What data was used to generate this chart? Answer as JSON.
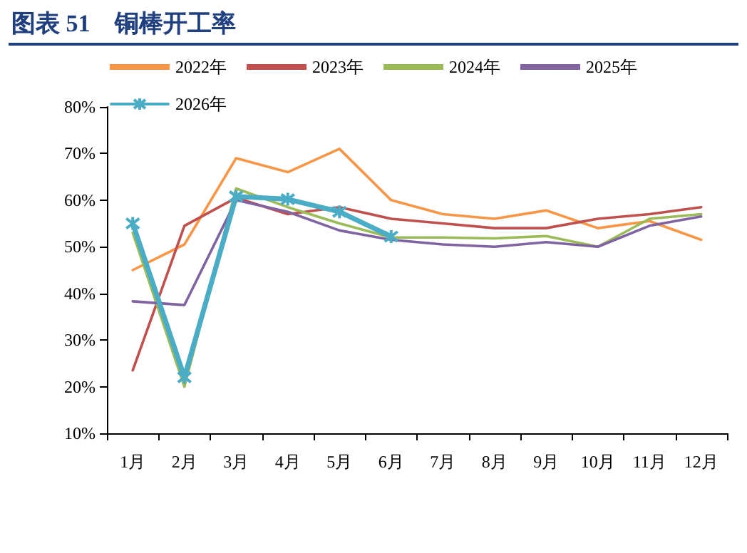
{
  "chart_data": {
    "type": "line",
    "title": "图表 51　铜棒开工率",
    "categories": [
      "1月",
      "2月",
      "3月",
      "4月",
      "5月",
      "6月",
      "7月",
      "8月",
      "9月",
      "10月",
      "11月",
      "12月"
    ],
    "series": [
      {
        "name": "2022年",
        "color": "#f79646",
        "values": [
          45,
          50.5,
          69,
          66,
          71,
          60,
          57,
          56,
          57.8,
          54,
          55.5,
          51.5
        ]
      },
      {
        "name": "2023年",
        "color": "#c0504d",
        "values": [
          23.5,
          54.5,
          60.5,
          57,
          58.5,
          56,
          55,
          54,
          54,
          56,
          57,
          58.5
        ]
      },
      {
        "name": "2024年",
        "color": "#9bbb59",
        "values": [
          53,
          20,
          62.5,
          58.5,
          55,
          52,
          52,
          51.8,
          52.3,
          50,
          56,
          57
        ]
      },
      {
        "name": "2025年",
        "color": "#8064a2",
        "values": [
          38.3,
          37.5,
          60,
          57.5,
          53.5,
          51.5,
          50.5,
          50,
          51,
          50,
          54.5,
          56.5
        ]
      },
      {
        "name": "2026年",
        "color": "#4bacc6",
        "marker": "cross",
        "values": [
          55,
          22,
          60.8,
          60.2,
          57.5,
          52.2,
          null,
          null,
          null,
          null,
          null,
          null
        ]
      }
    ],
    "ylim": [
      10,
      80
    ],
    "yticks": [
      {
        "value": 10,
        "label": "10%"
      },
      {
        "value": 20,
        "label": "20%"
      },
      {
        "value": 30,
        "label": "30%"
      },
      {
        "value": 40,
        "label": "40%"
      },
      {
        "value": 50,
        "label": "50%"
      },
      {
        "value": 60,
        "label": "60%"
      },
      {
        "value": 70,
        "label": "70%"
      },
      {
        "value": 80,
        "label": "80%"
      }
    ],
    "grid": false,
    "legend": "top",
    "marker": "none",
    "line_style": "solid"
  }
}
